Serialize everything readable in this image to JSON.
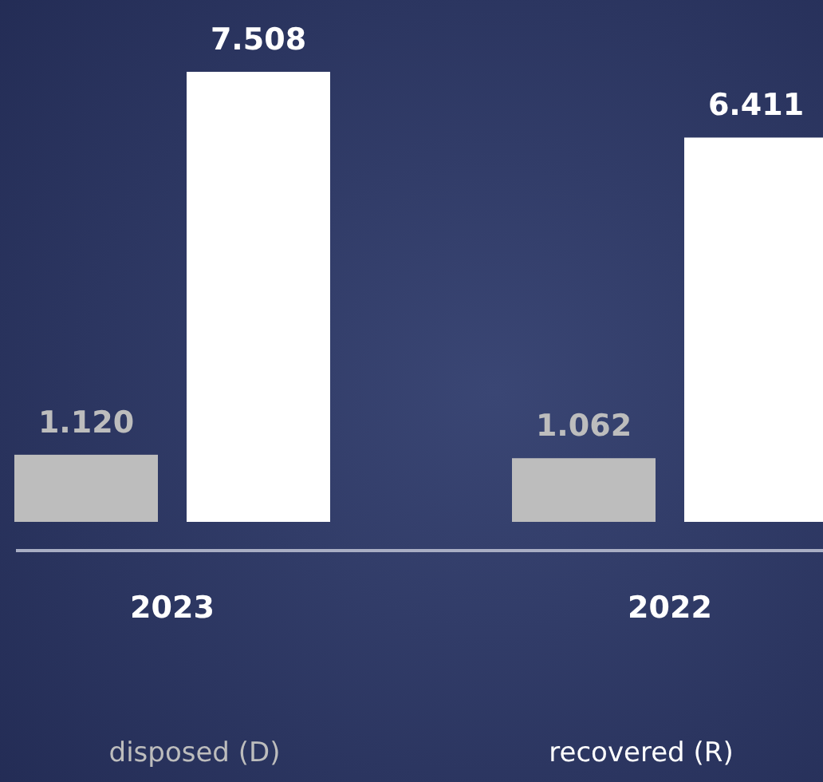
{
  "chart_data": {
    "type": "bar",
    "categories": [
      "2023",
      "2022"
    ],
    "series": [
      {
        "name": "disposed (D)",
        "color": "#bdbdbd",
        "values": [
          1120,
          1062
        ],
        "value_labels": [
          "1.120",
          "1.062"
        ]
      },
      {
        "name": "recovered (R)",
        "color": "#ffffff",
        "values": [
          7508,
          6411
        ],
        "value_labels": [
          "7.508",
          "6.411"
        ]
      }
    ],
    "legend": "bottom"
  }
}
